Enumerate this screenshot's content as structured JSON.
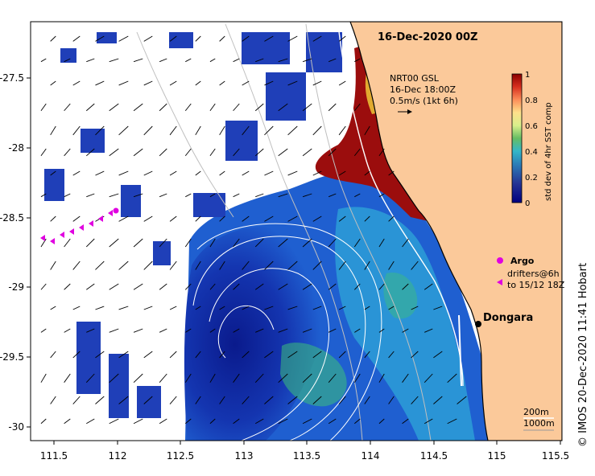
{
  "map": {
    "title": "16-Dec-2020 00Z",
    "lon_ticks": [
      "111.5",
      "112",
      "112.5",
      "113",
      "113.5",
      "114",
      "114.5",
      "115",
      "115.5"
    ],
    "lat_ticks": [
      "-27.5",
      "-28",
      "-28.5",
      "-29",
      "-29.5",
      "-30"
    ],
    "lon_range": [
      111.3,
      115.6
    ],
    "lat_range": [
      -27.1,
      -30.1
    ]
  },
  "current_note": {
    "line1": "NRT00 GSL",
    "line2": "16-Dec 18:00Z",
    "line3": "0.5m/s (1kt 6h)"
  },
  "colorbar": {
    "title": "std dev of 4hr SST comp",
    "ticks": [
      "1",
      "0.8",
      "0.6",
      "0.4",
      "0.2",
      "0"
    ],
    "colors": [
      "#8b0000",
      "#d7301f",
      "#fc8d59",
      "#fee08b",
      "#d9ef8b",
      "#66bd63",
      "#1a9850",
      "#35b7c8",
      "#2c7fb8",
      "#253494",
      "#000080"
    ]
  },
  "legend": {
    "argo_label": "Argo",
    "drifters_label_1": "drifters@6h",
    "drifters_label_2": "to 15/12 18Z"
  },
  "places": {
    "dongara": "Dongara"
  },
  "isobaths": {
    "label_1": "200m",
    "label_2": "1000m"
  },
  "credit": "© IMOS 20-Dec-2020 11:41 Hobart",
  "colors": {
    "land": "#fbc99a",
    "ocean_deep": "#0a1a8c",
    "ocean_mid": "#1f5fd0",
    "ocean_light": "#2fa6d8",
    "coastal_red": "#9b0d0d",
    "argo": "#e000e0"
  }
}
